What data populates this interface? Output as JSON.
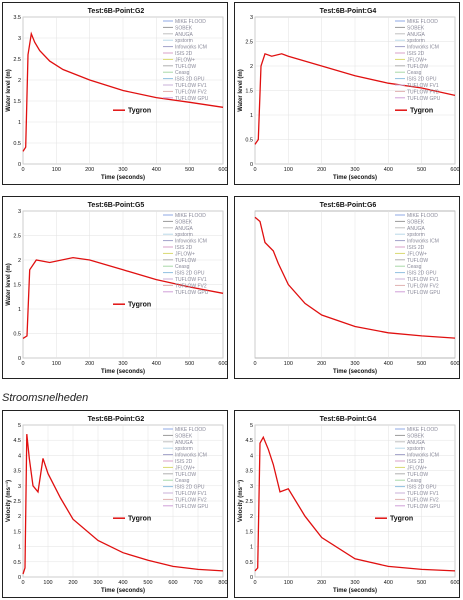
{
  "section_label": "Stroomsnelheden",
  "legend_items": [
    "MIKE FLOOD",
    "SOBEK",
    "ANUGA",
    "xpstorm",
    "Infoworks ICM",
    "ISIS 2D",
    "JFLOW+",
    "TUFLOW",
    "Ceasg",
    "ISIS 2D GPU",
    "TUFLOW FV1",
    "TUFLOW FV2",
    "TUFLOW GPU"
  ],
  "legend_colors": [
    "#8fa8e6",
    "#9a9a9a",
    "#c0c0c0",
    "#b8d8e8",
    "#a0a0c8",
    "#d8a0c8",
    "#d8d870",
    "#b0b0b0",
    "#a8d8a8",
    "#90c0e0",
    "#c8b0d8",
    "#e0b0b0",
    "#d0a0d8"
  ],
  "tygron_color": "#e01010",
  "chart_data": [
    {
      "type": "line",
      "title": "Test:6B-Point:G2",
      "xlabel": "Time (seconds)",
      "ylabel": "Water level (m)",
      "xlim": [
        0,
        600
      ],
      "ylim": [
        0,
        3.5
      ],
      "xticks": [
        0,
        100,
        200,
        300,
        400,
        500,
        600
      ],
      "yticks": [
        0,
        0.5,
        1,
        1.5,
        2,
        2.5,
        3,
        3.5
      ],
      "legend_labels": [
        "MIKE FLOOD",
        "SOBEK",
        "ANUGA",
        "xpstorm",
        "Infoworks ICM",
        "ISIS 2D",
        "JFLOW+",
        "TUFLOW",
        "Ceasg",
        "ISIS 2D GPU",
        "TUFLOW FV1",
        "TUFLOW FV2",
        "TUFLOW GPU"
      ],
      "tygron_label": "Tygron",
      "tygron": [
        [
          0,
          0.3
        ],
        [
          8,
          0.4
        ],
        [
          15,
          2.6
        ],
        [
          25,
          3.1
        ],
        [
          35,
          2.9
        ],
        [
          50,
          2.7
        ],
        [
          80,
          2.45
        ],
        [
          120,
          2.25
        ],
        [
          200,
          2.0
        ],
        [
          300,
          1.75
        ],
        [
          400,
          1.58
        ],
        [
          500,
          1.47
        ],
        [
          600,
          1.35
        ]
      ]
    },
    {
      "type": "line",
      "title": "Test:6B-Point:G4",
      "xlabel": "Time (seconds)",
      "ylabel": "Water level (m)",
      "xlim": [
        0,
        600
      ],
      "ylim": [
        0,
        3
      ],
      "xticks": [
        0,
        100,
        200,
        300,
        400,
        500,
        600
      ],
      "yticks": [
        0,
        0.5,
        1,
        1.5,
        2,
        2.5,
        3
      ],
      "legend_labels": [
        "MIKE FLOOD",
        "SOBEK",
        "ANUGA",
        "xpstorm",
        "Infoworks ICM",
        "ISIS 2D",
        "JFLOW+",
        "TUFLOW",
        "Ceasg",
        "ISIS 2D GPU",
        "TUFLOW FV1",
        "TUFLOW FV2",
        "TUFLOW GPU"
      ],
      "tygron_label": "Tygron",
      "tygron": [
        [
          0,
          0.4
        ],
        [
          10,
          0.5
        ],
        [
          18,
          2.0
        ],
        [
          30,
          2.25
        ],
        [
          50,
          2.2
        ],
        [
          80,
          2.25
        ],
        [
          100,
          2.2
        ],
        [
          200,
          2.0
        ],
        [
          300,
          1.8
        ],
        [
          400,
          1.65
        ],
        [
          500,
          1.55
        ],
        [
          600,
          1.4
        ]
      ]
    },
    {
      "type": "line",
      "title": "Test:6B-Point:G5",
      "xlabel": "Time (seconds)",
      "ylabel": "Water level (m)",
      "xlim": [
        0,
        600
      ],
      "ylim": [
        0,
        3
      ],
      "xticks": [
        0,
        100,
        200,
        300,
        400,
        500,
        600
      ],
      "yticks": [
        0,
        0.5,
        1,
        1.5,
        2,
        2.5,
        3
      ],
      "legend_labels": [
        "MIKE FLOOD",
        "SOBEK",
        "ANUGA",
        "xpstorm",
        "Infoworks ICM",
        "ISIS 2D",
        "JFLOW+",
        "TUFLOW",
        "Ceasg",
        "ISIS 2D GPU",
        "TUFLOW FV1",
        "TUFLOW FV2",
        "TUFLOW GPU"
      ],
      "tygron_label": "Tygron",
      "tygron": [
        [
          0,
          0.4
        ],
        [
          12,
          0.45
        ],
        [
          20,
          1.8
        ],
        [
          40,
          2.0
        ],
        [
          80,
          1.95
        ],
        [
          150,
          2.05
        ],
        [
          200,
          2.0
        ],
        [
          300,
          1.8
        ],
        [
          400,
          1.6
        ],
        [
          500,
          1.45
        ],
        [
          600,
          1.32
        ]
      ]
    },
    {
      "type": "line",
      "title": "Test:6B-Point:G6",
      "xlabel": "Time (seconds)",
      "ylabel": "",
      "xlim": [
        0,
        600
      ],
      "ylim": [
        0.5,
        7.5
      ],
      "xticks": [
        0,
        100,
        200,
        300,
        400,
        500,
        600
      ],
      "yticks": [],
      "legend_labels": [
        "MIKE FLOOD",
        "SOBEK",
        "ANUGA",
        "xpstorm",
        "Infoworks ICM",
        "ISIS 2D",
        "JFLOW+",
        "TUFLOW",
        "Ceasg",
        "ISIS 2D GPU",
        "TUFLOW FV1",
        "TUFLOW FV2",
        "TUFLOW GPU"
      ],
      "tygron_label": "",
      "tygron": [
        [
          0,
          7.2
        ],
        [
          15,
          7.0
        ],
        [
          30,
          6.0
        ],
        [
          55,
          5.6
        ],
        [
          70,
          5.0
        ],
        [
          100,
          4.0
        ],
        [
          150,
          3.1
        ],
        [
          200,
          2.55
        ],
        [
          300,
          2.0
        ],
        [
          400,
          1.7
        ],
        [
          500,
          1.55
        ],
        [
          600,
          1.45
        ]
      ]
    },
    {
      "type": "line",
      "title": "Test:6B-Point:G2",
      "xlabel": "Time (seconds)",
      "ylabel": "Velocity (ms⁻¹)",
      "xlim": [
        0,
        800
      ],
      "ylim": [
        0,
        5
      ],
      "xticks": [
        0,
        100,
        200,
        300,
        400,
        500,
        600,
        700,
        800
      ],
      "yticks": [
        0,
        0.5,
        1,
        1.5,
        2,
        2.5,
        3,
        3.5,
        4,
        4.5,
        5
      ],
      "legend_labels": [
        "MIKE FLOOD",
        "SOBEK",
        "ANUGA",
        "xpstorm",
        "Infoworks ICM",
        "ISIS 2D",
        "JFLOW+",
        "TUFLOW",
        "Ceasg",
        "ISIS 2D GPU",
        "TUFLOW FV1",
        "TUFLOW FV2",
        "TUFLOW GPU"
      ],
      "tygron_label": "Tygron",
      "tygron": [
        [
          0,
          0.1
        ],
        [
          8,
          0.3
        ],
        [
          15,
          4.7
        ],
        [
          25,
          3.9
        ],
        [
          40,
          3.0
        ],
        [
          60,
          2.8
        ],
        [
          80,
          3.9
        ],
        [
          100,
          3.4
        ],
        [
          150,
          2.6
        ],
        [
          200,
          1.9
        ],
        [
          300,
          1.2
        ],
        [
          400,
          0.8
        ],
        [
          500,
          0.55
        ],
        [
          600,
          0.35
        ],
        [
          700,
          0.25
        ],
        [
          800,
          0.2
        ]
      ]
    },
    {
      "type": "line",
      "title": "Test:6B-Point:G4",
      "xlabel": "Time (seconds)",
      "ylabel": "Velocity (ms⁻¹)",
      "xlim": [
        0,
        600
      ],
      "ylim": [
        0,
        5
      ],
      "xticks": [
        0,
        100,
        200,
        300,
        400,
        500,
        600
      ],
      "yticks": [
        0,
        0.5,
        1,
        1.5,
        2,
        2.5,
        3,
        3.5,
        4,
        4.5,
        5
      ],
      "legend_labels": [
        "MIKE FLOOD",
        "SOBEK",
        "ANUGA",
        "xpstorm",
        "Infoworks ICM",
        "ISIS 2D",
        "JFLOW+",
        "TUFLOW",
        "Ceasg",
        "ISIS 2D GPU",
        "TUFLOW FV1",
        "TUFLOW FV2",
        "TUFLOW GPU"
      ],
      "tygron_label": "Tygron",
      "tygron": [
        [
          0,
          0.2
        ],
        [
          8,
          0.3
        ],
        [
          15,
          4.4
        ],
        [
          25,
          4.6
        ],
        [
          40,
          4.2
        ],
        [
          55,
          3.7
        ],
        [
          75,
          2.8
        ],
        [
          100,
          2.9
        ],
        [
          150,
          2.0
        ],
        [
          200,
          1.3
        ],
        [
          300,
          0.6
        ],
        [
          400,
          0.35
        ],
        [
          500,
          0.25
        ],
        [
          600,
          0.2
        ]
      ]
    }
  ]
}
